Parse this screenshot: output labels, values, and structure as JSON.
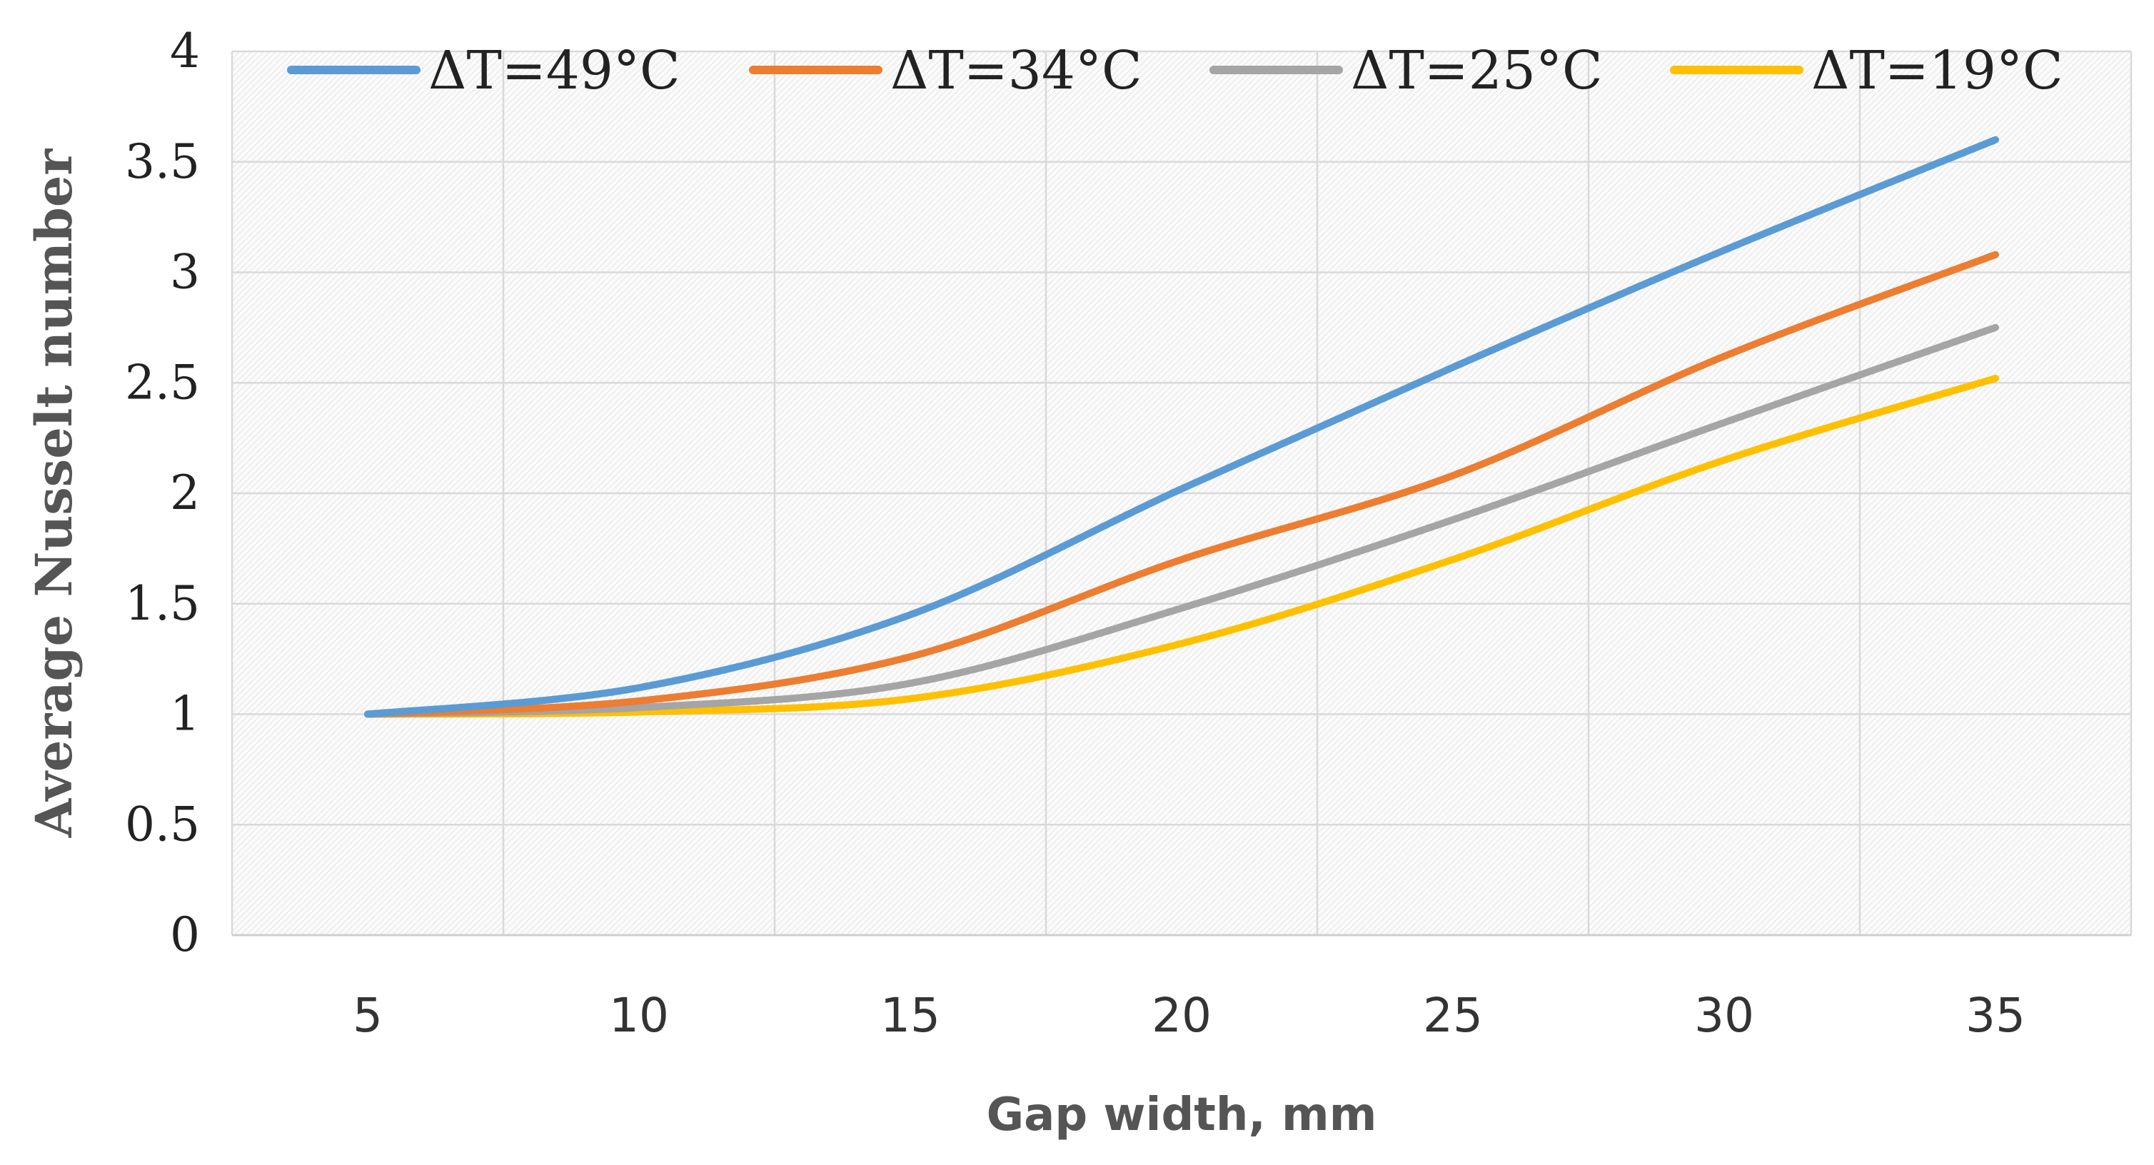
{
  "chart_data": {
    "type": "line",
    "title": "",
    "xlabel": "Gap width, mm",
    "ylabel": "Average Nusselt number",
    "x": [
      5,
      10,
      15,
      20,
      25,
      30,
      35
    ],
    "xlim": [
      2.5,
      37.5
    ],
    "ylim": [
      0,
      4
    ],
    "x_ticks": [
      5,
      10,
      15,
      20,
      25,
      30,
      35
    ],
    "y_ticks": [
      0,
      0.5,
      1,
      1.5,
      2,
      2.5,
      3,
      3.5,
      4
    ],
    "y_tick_labels": [
      "0",
      "0.5",
      "1",
      "1.5",
      "2",
      "2.5",
      "3",
      "3.5",
      "4"
    ],
    "grid": true,
    "legend_position": "top",
    "series": [
      {
        "name": "ΔT=49°C",
        "color": "#5B9BD5",
        "values": [
          1.0,
          1.12,
          1.45,
          2.02,
          2.57,
          3.1,
          3.6
        ]
      },
      {
        "name": "ΔT=34°C",
        "color": "#ED7D31",
        "values": [
          1.0,
          1.06,
          1.26,
          1.7,
          2.08,
          2.62,
          3.08
        ]
      },
      {
        "name": "ΔT=25°C",
        "color": "#A5A5A5",
        "values": [
          1.0,
          1.03,
          1.14,
          1.48,
          1.88,
          2.32,
          2.75
        ]
      },
      {
        "name": "ΔT=19°C",
        "color": "#FFC000",
        "values": [
          1.0,
          1.01,
          1.07,
          1.32,
          1.7,
          2.15,
          2.52
        ]
      }
    ]
  }
}
